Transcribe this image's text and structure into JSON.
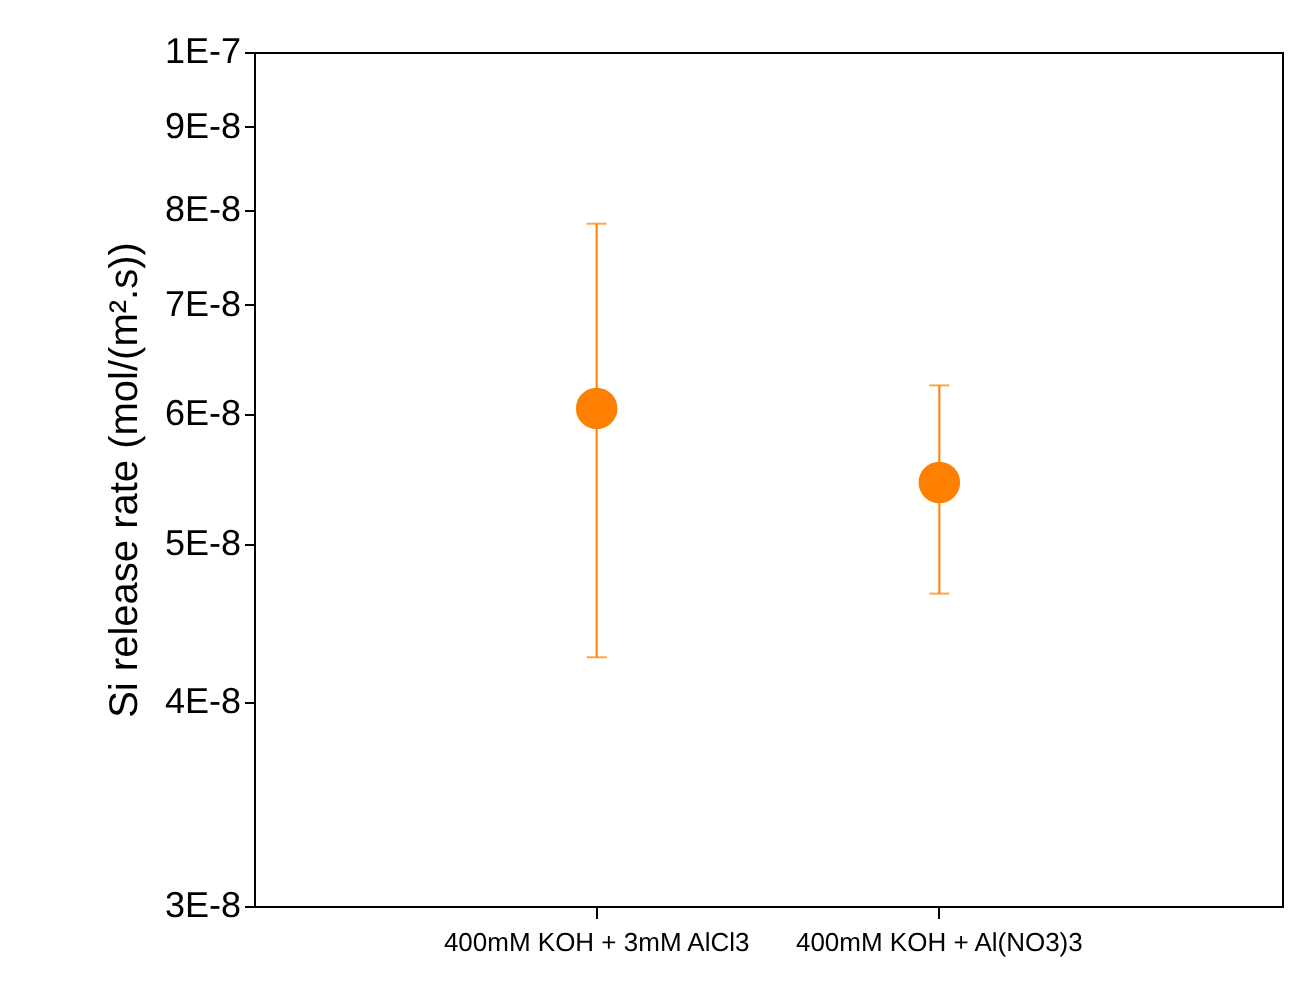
{
  "chart_data": {
    "type": "scatter",
    "ylabel": "Si release rate (mol/(m².s))",
    "categories": [
      "400mM KOH + 3mM AlCl3",
      "400mM KOH + Al(NO3)3"
    ],
    "series": [
      {
        "color": "#ff8000",
        "values": [
          6.05e-08,
          null
        ],
        "errors": [
          [
            4.26e-08,
            7.85e-08
          ],
          null
        ]
      },
      {
        "color": "#ff8000",
        "values": [
          null,
          5.45e-08
        ],
        "errors": [
          null,
          [
            4.66e-08,
            6.25e-08
          ]
        ]
      }
    ],
    "log": "y",
    "ylim": [
      3e-08,
      1e-07
    ],
    "yticks": [
      {
        "value": 3e-08,
        "label": "3E-8"
      },
      {
        "value": 4e-08,
        "label": "4E-8"
      },
      {
        "value": 5e-08,
        "label": "5E-8"
      },
      {
        "value": 6e-08,
        "label": "6E-8"
      },
      {
        "value": 7e-08,
        "label": "7E-8"
      },
      {
        "value": 8e-08,
        "label": "8E-8"
      },
      {
        "value": 9e-08,
        "label": "9E-8"
      },
      {
        "value": 1e-07,
        "label": "1E-7"
      }
    ],
    "marker": "circle",
    "grid": false
  }
}
